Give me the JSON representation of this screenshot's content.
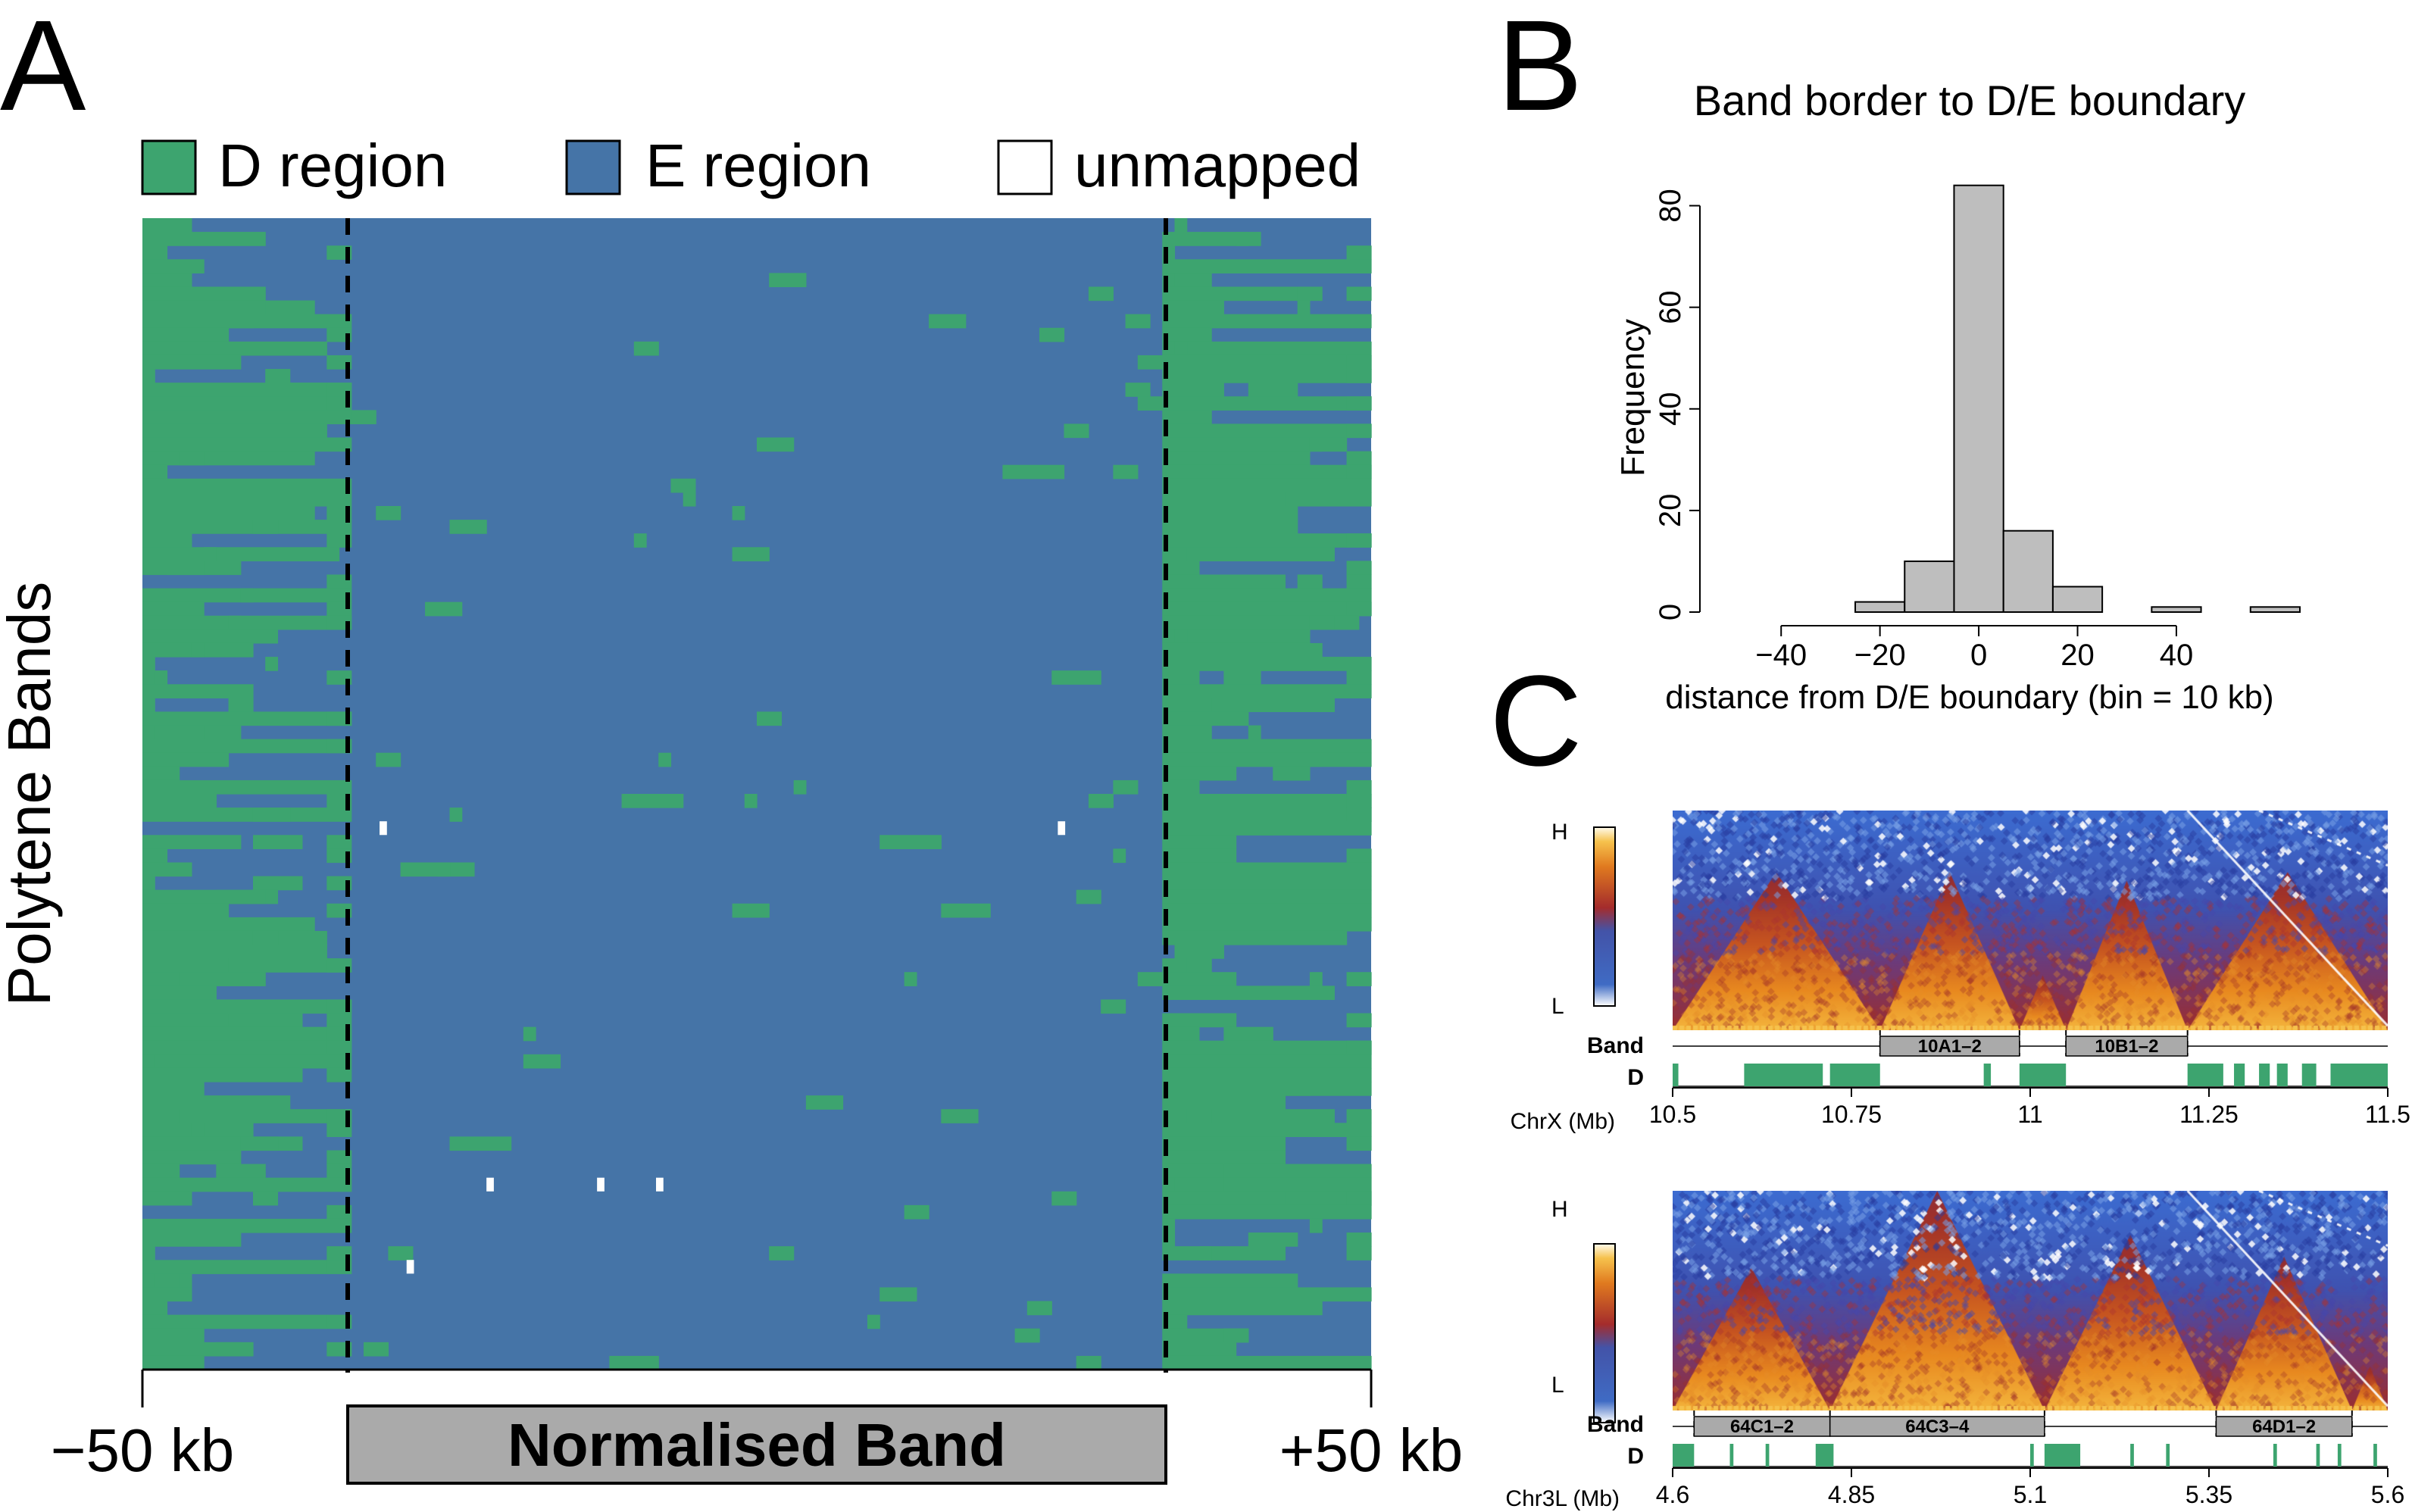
{
  "panel_letters": {
    "a": "A",
    "b": "B",
    "c": "C"
  },
  "colors": {
    "d_region": "#3DA46F",
    "e_region": "#4574A7",
    "unmapped": "#FFFFFF",
    "band_fill": "#AAAAAA",
    "hist_fill": "#BEBEBE"
  },
  "chart_data": [
    {
      "id": "panel-a",
      "type": "heatmap",
      "title": "",
      "legend": [
        {
          "key": "D",
          "label": "D region",
          "color": "#3DA46F"
        },
        {
          "key": "E",
          "label": "E region",
          "color": "#4574A7"
        },
        {
          "key": "U",
          "label": "unmapped",
          "color": "#FFFFFF"
        }
      ],
      "legend_position": "top",
      "ylabel": "Polytene Bands",
      "x_tick_labels": [
        "−50 kb",
        "+50 kb"
      ],
      "xlim": [
        -50,
        150
      ],
      "band_label": "Normalised Band",
      "band_span": [
        0,
        100
      ],
      "boundary_lines": [
        0,
        100
      ],
      "rows": 84,
      "bins_per_row": 100,
      "notes_values": "each row is one polytene band; first 17 and last 17 columns are flanks, middle 66 columns are normalised band interior"
    },
    {
      "id": "panel-b",
      "type": "bar",
      "title": "Band border to D/E boundary",
      "xlabel": "distance from D/E boundary (bin = 10 kb)",
      "ylabel": "Frequency",
      "x_ticks": [
        -40,
        -20,
        0,
        20,
        40
      ],
      "y_ticks": [
        0,
        20,
        40,
        60,
        80
      ],
      "xlim": [
        -50,
        65
      ],
      "ylim": [
        0,
        85
      ],
      "bin_edges": [
        -25,
        -15,
        -5,
        5,
        15,
        25,
        35,
        45,
        55,
        65
      ],
      "values": [
        2,
        10,
        84,
        16,
        5,
        0,
        1,
        0,
        1
      ]
    },
    {
      "id": "panel-c-top",
      "type": "heatmap",
      "axis_label": "ChrX (Mb)",
      "scale_high": "H",
      "scale_low": "L",
      "band_track_label": "Band",
      "d_track_label": "D",
      "x_ticks": [
        10.5,
        10.75,
        11,
        11.25,
        11.5
      ],
      "x_tick_labels": [
        "10.5",
        "10.75",
        "11",
        "11.25",
        "11.5"
      ],
      "xlim": [
        10.5,
        11.5
      ],
      "bands": [
        {
          "label": "10A1–2",
          "start": 10.79,
          "end": 10.985
        },
        {
          "label": "10B1–2",
          "start": 11.05,
          "end": 11.22
        }
      ],
      "dashed_lines": [
        10.79,
        10.985,
        11.05,
        11.22
      ],
      "d_segments": [
        [
          10.5,
          10.508
        ],
        [
          10.6,
          10.71
        ],
        [
          10.72,
          10.79
        ],
        [
          10.935,
          10.945
        ],
        [
          10.985,
          11.05
        ],
        [
          11.22,
          11.27
        ],
        [
          11.285,
          11.3
        ],
        [
          11.32,
          11.335
        ],
        [
          11.345,
          11.36
        ],
        [
          11.38,
          11.4
        ],
        [
          11.42,
          11.5
        ]
      ],
      "triangles": [
        {
          "start": 10.5,
          "end": 10.79,
          "height": 0.72
        },
        {
          "start": 10.79,
          "end": 10.985,
          "height": 0.72
        },
        {
          "start": 10.985,
          "end": 11.05,
          "height": 0.25
        },
        {
          "start": 11.05,
          "end": 11.22,
          "height": 0.68
        },
        {
          "start": 11.22,
          "end": 11.5,
          "height": 0.72
        }
      ]
    },
    {
      "id": "panel-c-bottom",
      "type": "heatmap",
      "axis_label": "Chr3L (Mb)",
      "scale_high": "H",
      "scale_low": "L",
      "band_track_label": "Band",
      "d_track_label": "D",
      "x_ticks": [
        4.6,
        4.85,
        5.1,
        5.35,
        5.6
      ],
      "x_tick_labels": [
        "4.6",
        "4.85",
        "5.1",
        "5.35",
        "5.6"
      ],
      "xlim": [
        4.6,
        5.6
      ],
      "bands": [
        {
          "label": "64C1–2",
          "start": 4.63,
          "end": 4.82
        },
        {
          "label": "64C3–4",
          "start": 4.82,
          "end": 5.12
        },
        {
          "label": "64D1–2",
          "start": 5.36,
          "end": 5.55
        }
      ],
      "dashed_lines": [
        4.63,
        4.82,
        5.12,
        5.36,
        5.55
      ],
      "d_segments": [
        [
          4.6,
          4.63
        ],
        [
          4.68,
          4.685
        ],
        [
          4.73,
          4.735
        ],
        [
          4.8,
          4.825
        ],
        [
          5.1,
          5.105
        ],
        [
          5.12,
          5.17
        ],
        [
          5.24,
          5.245
        ],
        [
          5.29,
          5.295
        ],
        [
          5.44,
          5.445
        ],
        [
          5.5,
          5.505
        ],
        [
          5.53,
          5.535
        ],
        [
          5.58,
          5.585
        ]
      ],
      "triangles": [
        {
          "start": 4.6,
          "end": 4.82,
          "height": 0.65
        },
        {
          "start": 4.82,
          "end": 5.12,
          "height": 1.0
        },
        {
          "start": 5.12,
          "end": 5.36,
          "height": 0.8
        },
        {
          "start": 5.36,
          "end": 5.55,
          "height": 0.7
        },
        {
          "start": 5.55,
          "end": 5.6,
          "height": 0.2
        }
      ]
    }
  ]
}
